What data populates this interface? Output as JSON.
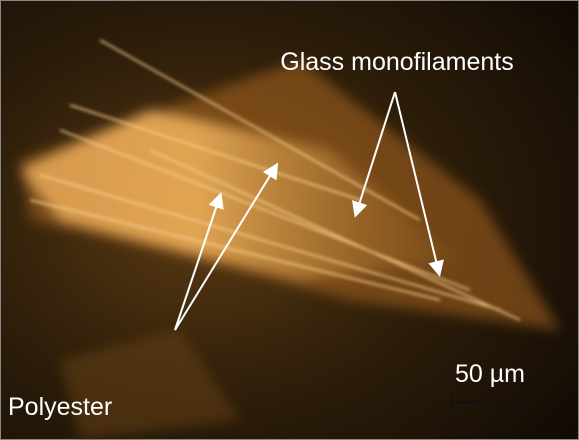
{
  "annotations": {
    "glass": "Glass monofilaments",
    "polyester": "Polyester",
    "scale_bar": "50 µm"
  }
}
